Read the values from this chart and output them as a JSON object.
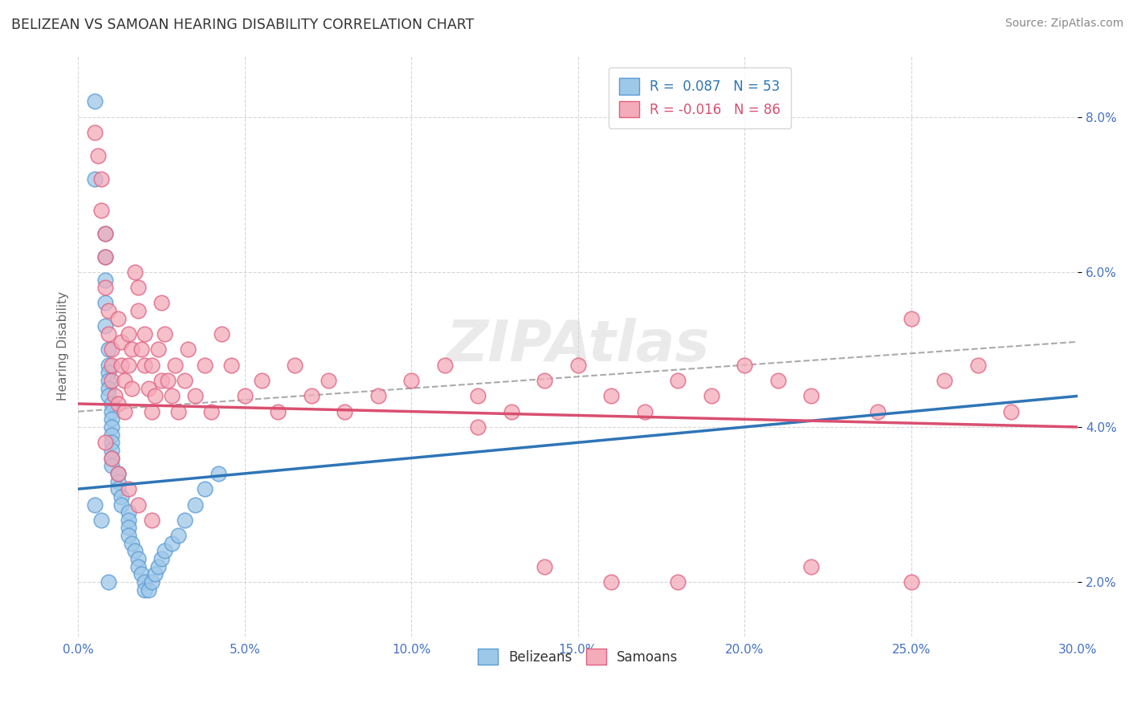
{
  "title": "BELIZEAN VS SAMOAN HEARING DISABILITY CORRELATION CHART",
  "source": "Source: ZipAtlas.com",
  "ylabel": "Hearing Disability",
  "xlim": [
    0.0,
    0.3
  ],
  "ylim": [
    0.013,
    0.088
  ],
  "xticks": [
    0.0,
    0.05,
    0.1,
    0.15,
    0.2,
    0.25,
    0.3
  ],
  "xtick_labels": [
    "0.0%",
    "5.0%",
    "10.0%",
    "15.0%",
    "20.0%",
    "25.0%",
    "30.0%"
  ],
  "yticks": [
    0.02,
    0.04,
    0.06,
    0.08
  ],
  "ytick_labels": [
    "2.0%",
    "4.0%",
    "6.0%",
    "8.0%"
  ],
  "legend_blue_label": "R =  0.087   N = 53",
  "legend_pink_label": "R = -0.016   N = 86",
  "belizean_color": "#9EC8E8",
  "belizean_edge": "#5B9BD5",
  "samoan_color": "#F4ABBA",
  "samoan_edge": "#E06080",
  "blue_line_color": "#2E75B6",
  "pink_line_color": "#D94F70",
  "dashed_line_color": "#AAAAAA",
  "title_color": "#333333",
  "axis_tick_color": "#4472C4",
  "watermark": "ZIPAtlas",
  "belizean_x": [
    0.005,
    0.005,
    0.008,
    0.008,
    0.008,
    0.008,
    0.008,
    0.009,
    0.009,
    0.009,
    0.009,
    0.009,
    0.009,
    0.01,
    0.01,
    0.01,
    0.01,
    0.01,
    0.01,
    0.01,
    0.01,
    0.01,
    0.012,
    0.012,
    0.012,
    0.013,
    0.013,
    0.015,
    0.015,
    0.015,
    0.015,
    0.016,
    0.017,
    0.018,
    0.018,
    0.019,
    0.02,
    0.02,
    0.021,
    0.022,
    0.023,
    0.024,
    0.025,
    0.026,
    0.028,
    0.03,
    0.032,
    0.035,
    0.038,
    0.042,
    0.005,
    0.007,
    0.009
  ],
  "belizean_y": [
    0.082,
    0.072,
    0.065,
    0.062,
    0.059,
    0.056,
    0.053,
    0.05,
    0.048,
    0.047,
    0.046,
    0.045,
    0.044,
    0.043,
    0.042,
    0.041,
    0.04,
    0.039,
    0.038,
    0.037,
    0.036,
    0.035,
    0.034,
    0.033,
    0.032,
    0.031,
    0.03,
    0.029,
    0.028,
    0.027,
    0.026,
    0.025,
    0.024,
    0.023,
    0.022,
    0.021,
    0.02,
    0.019,
    0.019,
    0.02,
    0.021,
    0.022,
    0.023,
    0.024,
    0.025,
    0.026,
    0.028,
    0.03,
    0.032,
    0.034,
    0.03,
    0.028,
    0.02
  ],
  "samoan_x": [
    0.005,
    0.006,
    0.007,
    0.007,
    0.008,
    0.008,
    0.008,
    0.009,
    0.009,
    0.01,
    0.01,
    0.01,
    0.011,
    0.012,
    0.012,
    0.013,
    0.013,
    0.014,
    0.014,
    0.015,
    0.015,
    0.016,
    0.016,
    0.017,
    0.018,
    0.018,
    0.019,
    0.02,
    0.02,
    0.021,
    0.022,
    0.022,
    0.023,
    0.024,
    0.025,
    0.025,
    0.026,
    0.027,
    0.028,
    0.029,
    0.03,
    0.032,
    0.033,
    0.035,
    0.038,
    0.04,
    0.043,
    0.046,
    0.05,
    0.055,
    0.06,
    0.065,
    0.07,
    0.075,
    0.08,
    0.09,
    0.1,
    0.11,
    0.12,
    0.13,
    0.14,
    0.15,
    0.16,
    0.17,
    0.18,
    0.19,
    0.2,
    0.21,
    0.22,
    0.24,
    0.25,
    0.26,
    0.27,
    0.28,
    0.12,
    0.14,
    0.16,
    0.18,
    0.22,
    0.25,
    0.008,
    0.01,
    0.012,
    0.015,
    0.018,
    0.022
  ],
  "samoan_y": [
    0.078,
    0.075,
    0.072,
    0.068,
    0.065,
    0.062,
    0.058,
    0.055,
    0.052,
    0.05,
    0.048,
    0.046,
    0.044,
    0.043,
    0.054,
    0.051,
    0.048,
    0.046,
    0.042,
    0.052,
    0.048,
    0.05,
    0.045,
    0.06,
    0.058,
    0.055,
    0.05,
    0.048,
    0.052,
    0.045,
    0.042,
    0.048,
    0.044,
    0.05,
    0.046,
    0.056,
    0.052,
    0.046,
    0.044,
    0.048,
    0.042,
    0.046,
    0.05,
    0.044,
    0.048,
    0.042,
    0.052,
    0.048,
    0.044,
    0.046,
    0.042,
    0.048,
    0.044,
    0.046,
    0.042,
    0.044,
    0.046,
    0.048,
    0.044,
    0.042,
    0.046,
    0.048,
    0.044,
    0.042,
    0.046,
    0.044,
    0.048,
    0.046,
    0.044,
    0.042,
    0.054,
    0.046,
    0.048,
    0.042,
    0.04,
    0.022,
    0.02,
    0.02,
    0.022,
    0.02,
    0.038,
    0.036,
    0.034,
    0.032,
    0.03,
    0.028
  ],
  "blue_line_x": [
    0.0,
    0.3
  ],
  "blue_line_y": [
    0.032,
    0.044
  ],
  "pink_line_x": [
    0.0,
    0.3
  ],
  "pink_line_y": [
    0.043,
    0.04
  ],
  "dashed_line_x": [
    0.0,
    0.3
  ],
  "dashed_line_y": [
    0.042,
    0.051
  ]
}
